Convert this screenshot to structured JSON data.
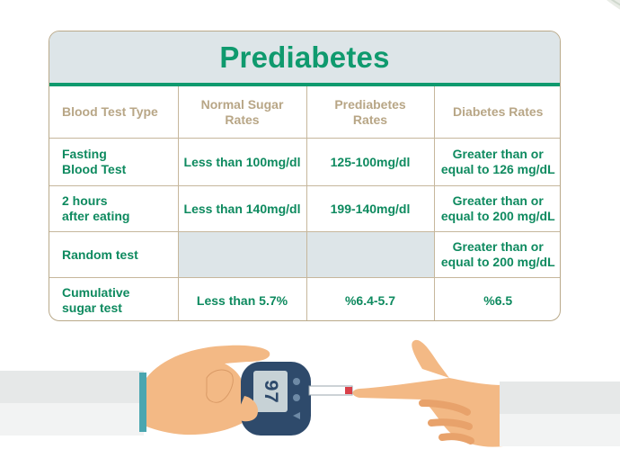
{
  "title": "Prediabetes",
  "table": {
    "headers": [
      "Blood Test Type",
      [
        "Normal Sugar",
        "Rates"
      ],
      [
        "Prediabetes",
        "Rates"
      ],
      "Diabetes Rates"
    ],
    "rows": [
      {
        "type": [
          "Fasting",
          "Blood Test"
        ],
        "normal": "Less than 100mg/dl",
        "prediabetes": "125-100mg/dl",
        "diabetes": [
          "Greater than or",
          "equal to 126 mg/dL"
        ]
      },
      {
        "type": [
          "2 hours",
          "after eating"
        ],
        "normal": "Less than 140mg/dl",
        "prediabetes": "199-140mg/dl",
        "diabetes": [
          "Greater than or",
          "equal to 200 mg/dL"
        ]
      },
      {
        "type": [
          "Random test"
        ],
        "normal": "",
        "prediabetes": "",
        "diabetes": [
          "Greater than or",
          "equal to 200 mg/dL"
        ]
      },
      {
        "type": [
          "Cumulative",
          "sugar test"
        ],
        "normal": "Less than 5.7%",
        "prediabetes": "%6.4-5.7",
        "diabetes": "%6.5"
      }
    ]
  },
  "meter": {
    "display": "97"
  },
  "colors": {
    "accent": "#0f9a6e",
    "header_text": "#b8a686",
    "title_bg": "#dde5e8",
    "border": "#c6b79c",
    "skin": "#f3b985",
    "meter": "#2e4a6b",
    "screen": "#c7d2d6"
  }
}
